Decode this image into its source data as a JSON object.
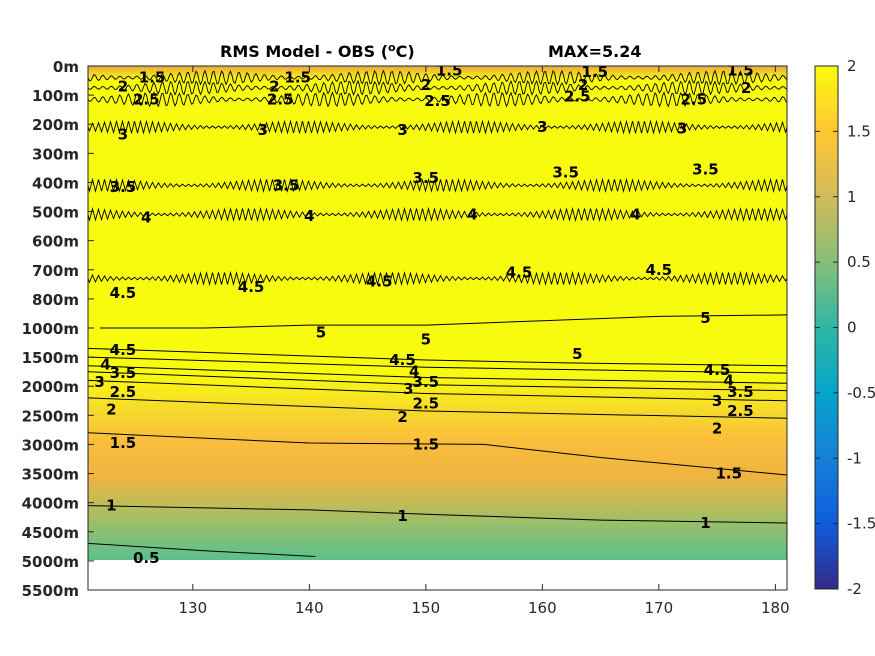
{
  "chart_data": {
    "type": "heatmap",
    "title_text": "RMS Model - OBS (",
    "title_superscript": "o",
    "title_unit": "C)",
    "max_label": "MAX=5.24",
    "xlim": [
      121,
      181
    ],
    "xticks": [
      130,
      140,
      150,
      160,
      170,
      180
    ],
    "xtick_labels": [
      "130",
      "140",
      "150",
      "160",
      "170",
      "180"
    ],
    "ytick_labels": [
      "0m",
      "100m",
      "200m",
      "300m",
      "400m",
      "500m",
      "600m",
      "700m",
      "800m",
      "1000m",
      "1500m",
      "2000m",
      "2500m",
      "3000m",
      "3500m",
      "4000m",
      "4500m",
      "5000m",
      "5500m"
    ],
    "grid": false,
    "colormap": "parula",
    "colorbar": {
      "range": [
        -2,
        2
      ],
      "ticks": [
        2,
        1.5,
        1,
        0.5,
        0,
        -0.5,
        -1,
        -1.5,
        -2
      ],
      "tick_labels": [
        "2",
        "1.5",
        "1",
        "0.5",
        "0",
        "-0.5",
        "-1",
        "-1.5",
        "-2"
      ],
      "colors": [
        "#352a87",
        "#0f5cdd",
        "#1481d6",
        "#06a4ca",
        "#2eb7a4",
        "#87bf77",
        "#d1bb59",
        "#fec832",
        "#f9fb0e"
      ]
    },
    "saturated_color": "#f9fb0e",
    "no_data_color": "#ffffff",
    "no_data_below_level": 17,
    "contour_lines": [
      {
        "value": 5,
        "label": "5",
        "points": [
          [
            122,
            9.0
          ],
          [
            131,
            9.0
          ],
          [
            140,
            8.9
          ],
          [
            150,
            8.9
          ],
          [
            160,
            8.75
          ],
          [
            170,
            8.6
          ],
          [
            181,
            8.55
          ]
        ],
        "labels_at": [
          [
            141,
            9.15
          ],
          [
            150,
            9.4
          ],
          [
            163,
            9.9
          ],
          [
            174,
            8.65
          ]
        ]
      },
      {
        "value": 4.5,
        "label": "4.5",
        "points": [
          [
            121,
            9.7
          ],
          [
            150,
            10.1
          ],
          [
            162,
            10.2
          ],
          [
            181,
            10.3
          ]
        ],
        "labels_at": [
          [
            124,
            9.75
          ],
          [
            148,
            10.1
          ],
          [
            175,
            10.45
          ]
        ]
      },
      {
        "value": 4,
        "label": "4",
        "points": [
          [
            121,
            10.0
          ],
          [
            150,
            10.35
          ],
          [
            181,
            10.55
          ]
        ],
        "labels_at": [
          [
            122.5,
            10.25
          ],
          [
            149,
            10.5
          ],
          [
            176,
            10.8
          ]
        ]
      },
      {
        "value": 3.5,
        "label": "3.5",
        "points": [
          [
            121,
            10.3
          ],
          [
            150,
            10.7
          ],
          [
            181,
            10.9
          ]
        ],
        "labels_at": [
          [
            124,
            10.55
          ],
          [
            150,
            10.85
          ],
          [
            177,
            11.2
          ]
        ]
      },
      {
        "value": 3,
        "label": "3",
        "points": [
          [
            121,
            10.5
          ],
          [
            150,
            10.95
          ],
          [
            181,
            11.15
          ]
        ],
        "labels_at": [
          [
            122,
            10.85
          ],
          [
            148.5,
            11.1
          ],
          [
            175,
            11.5
          ]
        ]
      },
      {
        "value": 2.5,
        "label": "2.5",
        "points": [
          [
            121,
            10.8
          ],
          [
            150,
            11.25
          ],
          [
            181,
            11.5
          ]
        ],
        "labels_at": [
          [
            124,
            11.2
          ],
          [
            150,
            11.6
          ],
          [
            177,
            11.85
          ]
        ]
      },
      {
        "value": 2,
        "label": "2",
        "points": [
          [
            121,
            11.4
          ],
          [
            150,
            11.85
          ],
          [
            181,
            12.1
          ]
        ],
        "labels_at": [
          [
            123,
            11.8
          ],
          [
            148,
            12.05
          ],
          [
            175,
            12.45
          ]
        ]
      },
      {
        "value": 1.5,
        "label": "1.5",
        "points": [
          [
            121,
            12.6
          ],
          [
            140,
            12.95
          ],
          [
            155,
            13.0
          ],
          [
            165,
            13.45
          ],
          [
            181,
            14.05
          ]
        ],
        "labels_at": [
          [
            124,
            12.95
          ],
          [
            150,
            13.0
          ],
          [
            176,
            14.0
          ]
        ]
      },
      {
        "value": 1,
        "label": "1",
        "points": [
          [
            121,
            15.1
          ],
          [
            140,
            15.25
          ],
          [
            150,
            15.4
          ],
          [
            165,
            15.6
          ],
          [
            181,
            15.7
          ]
        ],
        "labels_at": [
          [
            123,
            15.1
          ],
          [
            148,
            15.45
          ],
          [
            174,
            15.7
          ]
        ]
      },
      {
        "value": 0.5,
        "label": "0.5",
        "points": [
          [
            121,
            16.4
          ],
          [
            131,
            16.65
          ],
          [
            140.5,
            16.85
          ]
        ],
        "labels_at": [
          [
            126,
            16.9
          ]
        ]
      }
    ],
    "wavy_contours": [
      {
        "value": 1.5,
        "label": "1.5",
        "level": 0.4,
        "labels_at": [
          [
            126.5,
            0.4
          ],
          [
            139,
            0.4
          ],
          [
            152,
            0.15
          ],
          [
            164.5,
            0.2
          ],
          [
            177,
            0.15
          ]
        ]
      },
      {
        "value": 2,
        "label": "2",
        "level": 0.75,
        "labels_at": [
          [
            124,
            0.7
          ],
          [
            137,
            0.7
          ],
          [
            150,
            0.65
          ],
          [
            163.5,
            0.65
          ],
          [
            177.5,
            0.75
          ]
        ]
      },
      {
        "value": 2.5,
        "label": "2.5",
        "level": 1.15,
        "labels_at": [
          [
            126,
            1.15
          ],
          [
            137.5,
            1.15
          ],
          [
            151,
            1.2
          ],
          [
            163,
            1.05
          ],
          [
            173,
            1.15
          ]
        ]
      },
      {
        "value": 3,
        "label": "3",
        "level": 2.1,
        "labels_at": [
          [
            124,
            2.35
          ],
          [
            136,
            2.2
          ],
          [
            148,
            2.2
          ],
          [
            160,
            2.1
          ],
          [
            172,
            2.15
          ]
        ]
      },
      {
        "value": 3.5,
        "label": "3.5",
        "level": 4.1,
        "labels_at": [
          [
            124,
            4.15
          ],
          [
            138,
            4.1
          ],
          [
            150,
            3.85
          ],
          [
            162,
            3.65
          ],
          [
            174,
            3.55
          ]
        ]
      },
      {
        "value": 4,
        "label": "4",
        "level": 5.1,
        "labels_at": [
          [
            126,
            5.2
          ],
          [
            140,
            5.15
          ],
          [
            154,
            5.1
          ],
          [
            168,
            5.1
          ]
        ]
      },
      {
        "value": 4.5,
        "label": "4.5",
        "level": 7.3,
        "labels_at": [
          [
            124,
            7.8
          ],
          [
            135,
            7.6
          ],
          [
            146,
            7.4
          ],
          [
            158,
            7.1
          ],
          [
            170,
            7.0
          ]
        ]
      }
    ]
  }
}
